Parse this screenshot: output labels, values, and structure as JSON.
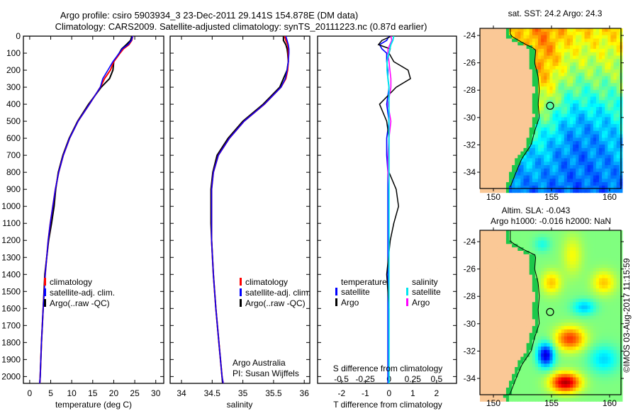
{
  "title": {
    "line1": "Argo profile: csiro 5903934_3 23-Dec-2011 29.141S 154.878E (DM data)",
    "line2": "Climatology: CARS2009. Satellite-adjusted climatology: synTS_20111223.nc (0.87d earlier)"
  },
  "colors": {
    "climatology": "#ff0000",
    "satellite": "#0000ff",
    "argo": "#000000",
    "sal_satellite": "#00e5ee",
    "sal_argo": "#ff00ff",
    "land": "#fac896"
  },
  "chart_data": [
    {
      "type": "line",
      "name": "temperature-profile",
      "xlabel": "temperature (deg C)",
      "ylabel": "",
      "xlim": [
        -1.5,
        31.9
      ],
      "ylim": [
        2040,
        0
      ],
      "xticks": [
        0,
        5,
        10,
        15,
        20,
        25,
        30
      ],
      "xtick_labels": [
        "0",
        "5",
        "10",
        "15",
        "20",
        "25",
        "30"
      ],
      "yticks": [
        0,
        100,
        200,
        300,
        400,
        500,
        600,
        700,
        800,
        900,
        1000,
        1100,
        1200,
        1300,
        1400,
        1500,
        1600,
        1700,
        1800,
        1900,
        2000
      ],
      "ytick_labels": [
        "0",
        "100",
        "200",
        "300",
        "400",
        "500",
        "600",
        "700",
        "800",
        "900",
        "1000",
        "1100",
        "1200",
        "1300",
        "1400",
        "1500",
        "1600",
        "1700",
        "1800",
        "1900",
        "2000"
      ],
      "legend": [
        "climatology",
        "satellite-adj. clim.",
        "Argo(..raw -QC)"
      ],
      "depth": [
        0,
        25,
        50,
        75,
        100,
        150,
        200,
        250,
        300,
        400,
        500,
        600,
        700,
        800,
        900,
        1000,
        1100,
        1200,
        1400,
        1600,
        1800,
        2000,
        2040
      ],
      "series": [
        {
          "name": "climatology",
          "values": [
            24.5,
            24.3,
            23.6,
            22.3,
            21.5,
            20.0,
            19.2,
            17.8,
            16.8,
            14.2,
            11.5,
            9.5,
            8.0,
            6.9,
            6.1,
            5.5,
            4.9,
            4.4,
            3.7,
            3.2,
            2.8,
            2.5,
            2.4
          ]
        },
        {
          "name": "Argo",
          "values": [
            24.3,
            24.0,
            23.0,
            21.9,
            21.3,
            20.0,
            19.8,
            19.0,
            17.0,
            14.0,
            11.4,
            9.4,
            7.9,
            6.8,
            6.2,
            5.8,
            5.2,
            4.5,
            3.6,
            3.2,
            2.8,
            2.5,
            2.4
          ]
        },
        {
          "name": "satellite-adj. clim.",
          "values": [
            24.5,
            24.2,
            23.4,
            22.0,
            21.3,
            19.8,
            18.6,
            17.4,
            16.8,
            14.2,
            11.5,
            9.5,
            8.0,
            6.9,
            6.1,
            5.5,
            4.9,
            4.4,
            3.7,
            3.2,
            2.8,
            2.5,
            2.4
          ]
        }
      ]
    },
    {
      "type": "line",
      "name": "salinity-profile",
      "xlabel": "salinity",
      "xlim": [
        33.815,
        36.09
      ],
      "ylim": [
        2040,
        0
      ],
      "xticks": [
        34,
        34.5,
        35,
        35.5,
        36
      ],
      "xtick_labels": [
        "34",
        "34.5",
        "35",
        "35.5",
        "36"
      ],
      "legend": [
        "climatology",
        "satellite-adj. clim.",
        "Argo(..raw -QC)"
      ],
      "annotation": [
        "Argo Australia",
        "PI: Susan Wijffels"
      ],
      "depth": [
        0,
        25,
        50,
        75,
        100,
        150,
        200,
        250,
        300,
        400,
        500,
        600,
        700,
        800,
        900,
        1000,
        1100,
        1200,
        1400,
        1600,
        1800,
        2000,
        2040
      ],
      "series": [
        {
          "name": "climatology",
          "values": [
            35.68,
            35.7,
            35.73,
            35.74,
            35.74,
            35.74,
            35.73,
            35.7,
            35.62,
            35.35,
            35.02,
            34.78,
            34.6,
            34.52,
            34.49,
            34.49,
            34.49,
            34.49,
            34.52,
            34.56,
            34.61,
            34.66,
            34.68
          ]
        },
        {
          "name": "Argo",
          "values": [
            35.66,
            35.66,
            35.7,
            35.72,
            35.73,
            35.74,
            35.72,
            35.66,
            35.6,
            35.33,
            35.0,
            34.76,
            34.58,
            34.51,
            34.48,
            34.48,
            34.48,
            34.49,
            34.52,
            34.56,
            34.61,
            34.66,
            34.67
          ]
        },
        {
          "name": "satellite-adj. clim.",
          "values": [
            35.7,
            35.72,
            35.74,
            35.75,
            35.75,
            35.74,
            35.72,
            35.69,
            35.62,
            35.35,
            35.02,
            34.78,
            34.6,
            34.52,
            34.49,
            34.49,
            34.49,
            34.49,
            34.52,
            34.56,
            34.61,
            34.66,
            34.68
          ]
        }
      ]
    },
    {
      "type": "line",
      "name": "difference-profile",
      "xlabel": "T difference from climatology",
      "x2label": "S difference from climatology",
      "xlim": [
        -3.01,
        2.84
      ],
      "x2lim": [
        -0.75,
        0.71
      ],
      "ylim": [
        2040,
        0
      ],
      "xticks": [
        -2,
        -1,
        0,
        1,
        2
      ],
      "xtick_labels": [
        "-2",
        "-1",
        "0",
        "1",
        "2"
      ],
      "x2ticks": [
        -0.5,
        -0.25,
        0,
        0.25,
        0.5
      ],
      "x2tick_labels": [
        "-0.5",
        "-0.25",
        "0",
        "0.25",
        "0.5"
      ],
      "legend": {
        "temperature_title": "temperature",
        "salinity_title": "salinity",
        "satellite": "satellite",
        "argo": "Argo"
      },
      "depth": [
        0,
        25,
        50,
        75,
        100,
        150,
        200,
        250,
        300,
        400,
        500,
        600,
        700,
        800,
        900,
        1000,
        1100,
        1200,
        1400,
        1600,
        1800,
        2000,
        2040
      ],
      "series": [
        {
          "name": "T satellite",
          "axis": "T",
          "values": [
            0,
            -0.1,
            -0.4,
            -0.3,
            -0.1,
            -0.1,
            -0.05,
            -0.05,
            0,
            -0.1,
            0,
            -0.1,
            -0.1,
            -0.05,
            -0.05,
            -0.05,
            -0.05,
            -0.05,
            -0.05,
            -0.05,
            -0.05,
            -0.05,
            -0.05
          ]
        },
        {
          "name": "T Argo",
          "axis": "T",
          "values": [
            0.1,
            -0.3,
            -0.45,
            0.05,
            0.0,
            0.2,
            0.8,
            0.9,
            0.3,
            -0.4,
            -0.1,
            0,
            0,
            0,
            0.3,
            0.4,
            0.2,
            0.05,
            -0.1,
            0,
            0,
            0,
            0
          ]
        },
        {
          "name": "S satellite",
          "axis": "S",
          "values": [
            0.05,
            0.04,
            0.02,
            0.01,
            0,
            -0.02,
            -0.02,
            -0.01,
            0,
            0,
            0,
            0,
            0,
            0,
            0,
            0,
            0,
            0,
            0,
            0,
            0,
            0,
            0
          ]
        },
        {
          "name": "S Argo",
          "axis": "S",
          "values": [
            0.02,
            0.03,
            0.01,
            -0.01,
            -0.01,
            0,
            0.01,
            0.02,
            0.02,
            -0.01,
            0.02,
            0,
            -0.01,
            -0.01,
            0,
            0,
            0,
            0,
            0,
            0,
            0,
            0,
            0
          ]
        }
      ]
    },
    {
      "type": "heatmap",
      "name": "sst-map",
      "title": "sat. SST: 24.2  Argo: 24.3",
      "xlim": [
        148.84,
        160.98
      ],
      "ylim": [
        -35.19,
        -23.48
      ],
      "xticks": [
        150,
        155,
        160
      ],
      "xtick_labels": [
        "150",
        "155",
        "160"
      ],
      "yticks": [
        -24,
        -26,
        -28,
        -30,
        -32,
        -34
      ],
      "ytick_labels": [
        "-24",
        "-26",
        "-28",
        "-30",
        "-32",
        "-34"
      ],
      "marker": {
        "lon": 154.878,
        "lat": -29.141
      }
    },
    {
      "type": "heatmap",
      "name": "sla-map",
      "title": "Altim. SLA: -0.043",
      "subtitle": "Argo h1000: -0.016 h2000: NaN",
      "xlim": [
        148.84,
        160.98
      ],
      "ylim": [
        -35.19,
        -23.17
      ],
      "xticks": [
        150,
        155,
        160
      ],
      "xtick_labels": [
        "150",
        "155",
        "160"
      ],
      "yticks": [
        -24,
        -26,
        -28,
        -30,
        -32,
        -34
      ],
      "ytick_labels": [
        "-24",
        "-26",
        "-28",
        "-30",
        "-32",
        "-34"
      ],
      "marker": {
        "lon": 154.878,
        "lat": -29.141
      }
    }
  ],
  "credit": "©IMOS 03-Aug-2017 11:15:59"
}
